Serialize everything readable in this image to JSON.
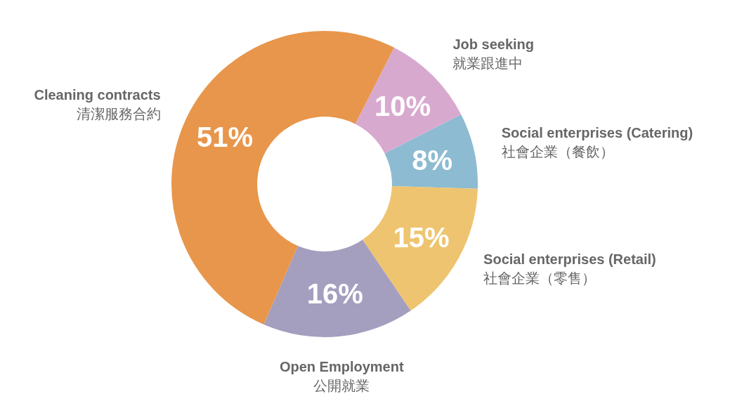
{
  "chart_data": {
    "type": "donut",
    "categories": [
      "Job seeking\n就業跟進中",
      "Social enterprises (Catering)\n社會企業（餐飲）",
      "Social enterprises (Retail)\n社會企業（零售）",
      "Open Employment\n公開就業",
      "Cleaning contracts\n清潔服務合約"
    ],
    "values": [
      10,
      8,
      15,
      16,
      51
    ],
    "colors": [
      "#d8a9cf",
      "#8dbbd1",
      "#eec470",
      "#a49ebf",
      "#e8964b"
    ],
    "value_labels": [
      "10%",
      "8%",
      "15%",
      "16%",
      "51%"
    ]
  }
}
